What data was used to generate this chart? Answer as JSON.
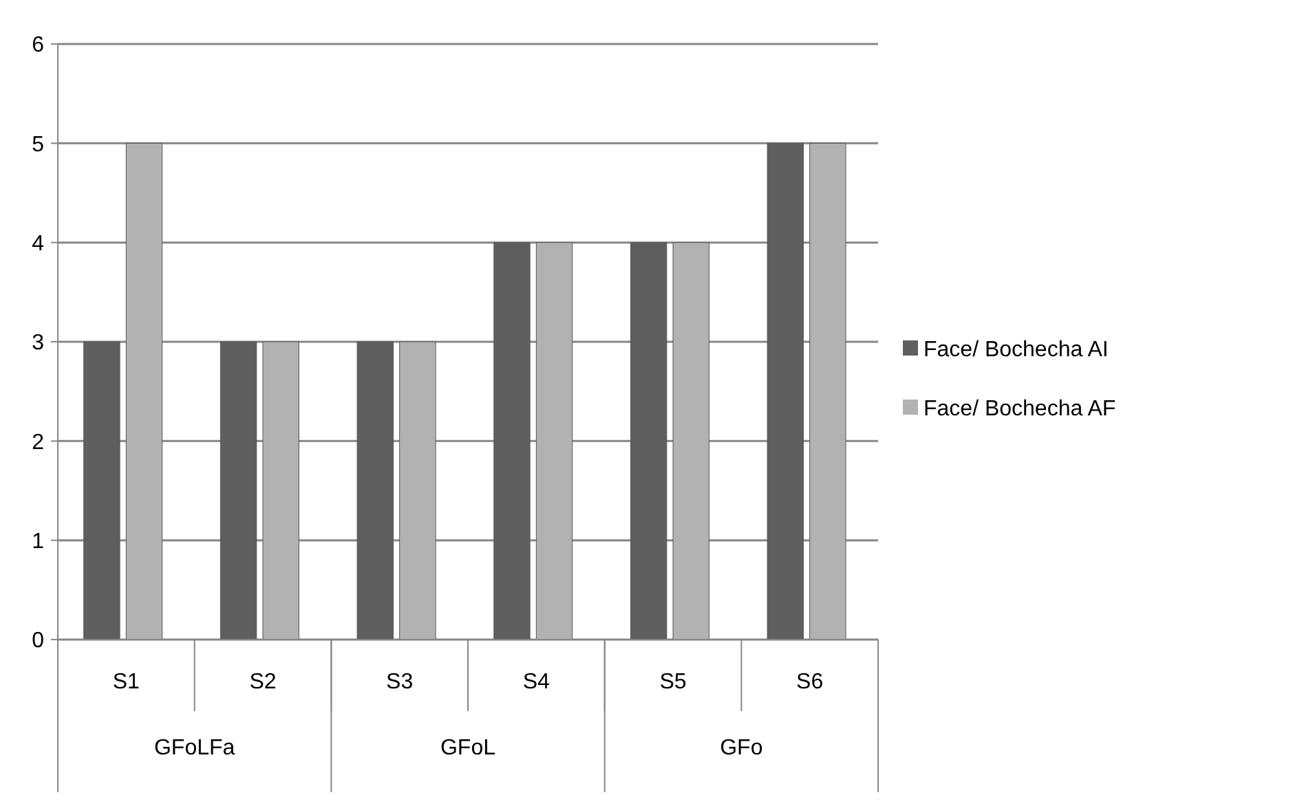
{
  "chart_data": {
    "type": "bar",
    "categories": [
      "S1",
      "S2",
      "S3",
      "S4",
      "S5",
      "S6"
    ],
    "series": [
      {
        "name": "Face/ Bochecha AI",
        "color": "#5f5f5f",
        "values": [
          3,
          3,
          3,
          4,
          4,
          5
        ]
      },
      {
        "name": "Face/ Bochecha AF",
        "color": "#b2b2b2",
        "values": [
          5,
          3,
          3,
          4,
          4,
          5
        ]
      }
    ],
    "ylim": [
      0,
      6
    ],
    "yticks": [
      0,
      1,
      2,
      3,
      4,
      5,
      6
    ],
    "grid": "y",
    "legend": "right",
    "annotations": [
      "GFoLFa",
      "GFoL",
      "GFo"
    ]
  }
}
